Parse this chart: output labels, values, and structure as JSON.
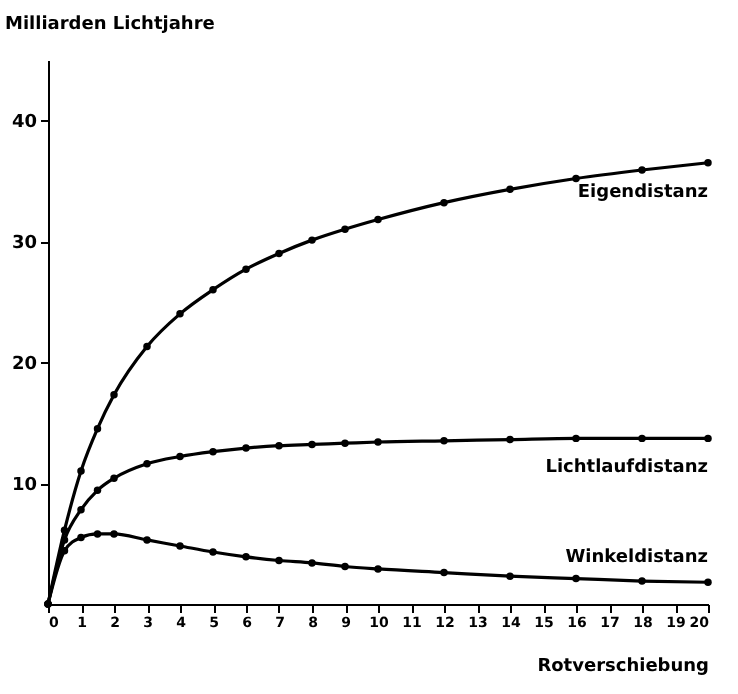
{
  "chart_data": {
    "type": "line",
    "xlabel": "Rotverschiebung",
    "ylabel": "Milliarden Lichtjahre",
    "x": [
      0,
      0.5,
      1,
      1.5,
      2,
      3,
      4,
      5,
      6,
      7,
      8,
      9,
      10,
      12,
      14,
      16,
      18,
      20
    ],
    "series": [
      {
        "name": "Eigendistanz",
        "color": "#000000",
        "values": [
          0,
          6.1,
          11,
          14.5,
          17.3,
          21.3,
          24,
          26,
          27.7,
          29,
          30.1,
          31,
          31.8,
          33.2,
          34.3,
          35.2,
          35.9,
          36.5
        ]
      },
      {
        "name": "Lichtlaufdistanz",
        "color": "#000000",
        "values": [
          0,
          5.3,
          7.8,
          9.4,
          10.4,
          11.6,
          12.2,
          12.6,
          12.9,
          13.1,
          13.2,
          13.3,
          13.4,
          13.5,
          13.6,
          13.7,
          13.7,
          13.7
        ]
      },
      {
        "name": "Winkeldistanz",
        "color": "#000000",
        "values": [
          0,
          4.4,
          5.5,
          5.8,
          5.8,
          5.3,
          4.8,
          4.3,
          3.9,
          3.6,
          3.4,
          3.1,
          2.9,
          2.6,
          2.3,
          2.1,
          1.9,
          1.8
        ]
      }
    ],
    "xlim": [
      0,
      20
    ],
    "xticks": [
      0,
      1,
      2,
      3,
      4,
      5,
      6,
      7,
      8,
      9,
      10,
      11,
      12,
      13,
      14,
      15,
      16,
      17,
      18,
      19,
      20
    ],
    "ylim": [
      0,
      45
    ],
    "yticks": [
      10,
      20,
      30,
      40
    ],
    "grid": false,
    "marker": "circle",
    "line_style": "solid"
  }
}
